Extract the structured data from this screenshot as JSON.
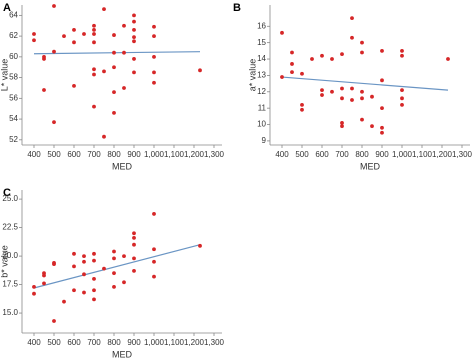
{
  "chart_data": [
    {
      "type": "scatter",
      "label": "A",
      "x_label": "MED",
      "y_label": "L* value",
      "color": "#d62728",
      "xlim": [
        340,
        1340
      ],
      "ylim": [
        51.5,
        65
      ],
      "xticks": [
        400,
        500,
        600,
        700,
        800,
        900,
        {
          "value": 1000,
          "label": "1,000"
        },
        {
          "value": 1100,
          "label": "1,100"
        },
        {
          "value": 1200,
          "label": "1,200"
        },
        {
          "value": 1300,
          "label": "1,300"
        }
      ],
      "yticks": [
        52,
        54,
        56,
        58,
        60,
        62,
        64
      ],
      "x": [
        400,
        400,
        450,
        450,
        450,
        500,
        500,
        500,
        550,
        600,
        600,
        600,
        650,
        700,
        700,
        700,
        700,
        700,
        700,
        700,
        750,
        750,
        750,
        800,
        800,
        800,
        800,
        800,
        850,
        850,
        850,
        900,
        900,
        900,
        900,
        900,
        900,
        900,
        1000,
        1000,
        1000,
        1000,
        1000,
        1230
      ],
      "values": [
        62.2,
        61.6,
        60.0,
        59.8,
        56.8,
        64.9,
        60.5,
        53.7,
        62.0,
        62.6,
        61.4,
        57.2,
        62.2,
        63.0,
        62.6,
        62.2,
        61.4,
        58.8,
        58.3,
        55.2,
        64.6,
        58.6,
        52.3,
        62.1,
        60.4,
        59.0,
        56.6,
        54.6,
        63.0,
        60.4,
        57.0,
        64.0,
        63.4,
        62.6,
        61.9,
        61.5,
        59.8,
        58.5,
        62.9,
        62.0,
        60.0,
        58.5,
        57.5,
        58.7
      ],
      "trend": {
        "x": [
          400,
          1230
        ],
        "values": [
          60.3,
          60.5
        ],
        "color": "#6a95c4"
      }
    },
    {
      "type": "scatter",
      "label": "B",
      "x_label": "MED",
      "y_label": "a* value",
      "color": "#d62728",
      "xlim": [
        340,
        1340
      ],
      "ylim": [
        8.75,
        17.3
      ],
      "xticks": [
        400,
        500,
        600,
        700,
        800,
        900,
        {
          "value": 1000,
          "label": "1,000"
        },
        {
          "value": 1100,
          "label": "1,100"
        },
        {
          "value": 1200,
          "label": "1,200"
        },
        {
          "value": 1300,
          "label": "1,300"
        }
      ],
      "yticks": [
        9,
        10,
        11,
        12,
        13,
        14,
        15,
        16
      ],
      "x": [
        400,
        400,
        450,
        450,
        450,
        500,
        500,
        500,
        550,
        600,
        600,
        600,
        650,
        650,
        700,
        700,
        700,
        700,
        700,
        750,
        750,
        750,
        750,
        800,
        800,
        800,
        800,
        800,
        850,
        850,
        900,
        900,
        900,
        900,
        900,
        1000,
        1000,
        1000,
        1000,
        1000,
        1230
      ],
      "values": [
        15.6,
        12.9,
        14.4,
        13.7,
        13.2,
        13.1,
        11.2,
        10.9,
        14.0,
        14.2,
        12.1,
        11.8,
        14.0,
        12.0,
        14.3,
        12.2,
        11.6,
        10.1,
        9.9,
        16.5,
        15.3,
        12.2,
        11.5,
        15.0,
        14.4,
        12.0,
        11.6,
        10.3,
        11.7,
        9.9,
        14.5,
        12.7,
        11.0,
        9.8,
        9.5,
        14.5,
        14.2,
        12.1,
        11.6,
        11.2,
        14.0
      ],
      "trend": {
        "x": [
          400,
          1230
        ],
        "values": [
          12.9,
          12.1
        ],
        "color": "#6a95c4"
      }
    },
    {
      "type": "scatter",
      "label": "C",
      "x_label": "MED",
      "y_label": "b* value",
      "color": "#d62728",
      "xlim": [
        340,
        1340
      ],
      "ylim": [
        13.25,
        25.8
      ],
      "xticks": [
        400,
        500,
        600,
        700,
        800,
        900,
        {
          "value": 1000,
          "label": "1,000"
        },
        {
          "value": 1100,
          "label": "1,100"
        },
        {
          "value": 1200,
          "label": "1,200"
        },
        {
          "value": 1300,
          "label": "1,300"
        }
      ],
      "yticks": [
        {
          "value": 15,
          "label": "15.0"
        },
        17.5,
        {
          "value": 20,
          "label": "20.0"
        },
        22.5,
        {
          "value": 25,
          "label": "25.0"
        }
      ],
      "x": [
        400,
        400,
        450,
        450,
        450,
        500,
        500,
        500,
        550,
        600,
        600,
        600,
        650,
        650,
        650,
        650,
        700,
        700,
        700,
        700,
        700,
        750,
        800,
        800,
        800,
        800,
        850,
        850,
        900,
        900,
        900,
        900,
        900,
        1000,
        1000,
        1000,
        1000,
        1230
      ],
      "values": [
        17.3,
        16.7,
        17.6,
        18.3,
        18.5,
        19.4,
        19.3,
        14.3,
        16.0,
        20.2,
        19.1,
        17.0,
        20.0,
        19.5,
        18.4,
        16.8,
        20.2,
        19.6,
        18.0,
        17.0,
        16.2,
        18.9,
        20.4,
        19.8,
        18.5,
        17.3,
        20.0,
        17.7,
        22.0,
        21.6,
        21.0,
        19.8,
        18.7,
        23.7,
        20.6,
        19.5,
        18.2,
        20.9
      ],
      "trend": {
        "x": [
          400,
          1230
        ],
        "values": [
          17.2,
          21.0
        ],
        "color": "#6a95c4"
      }
    }
  ]
}
